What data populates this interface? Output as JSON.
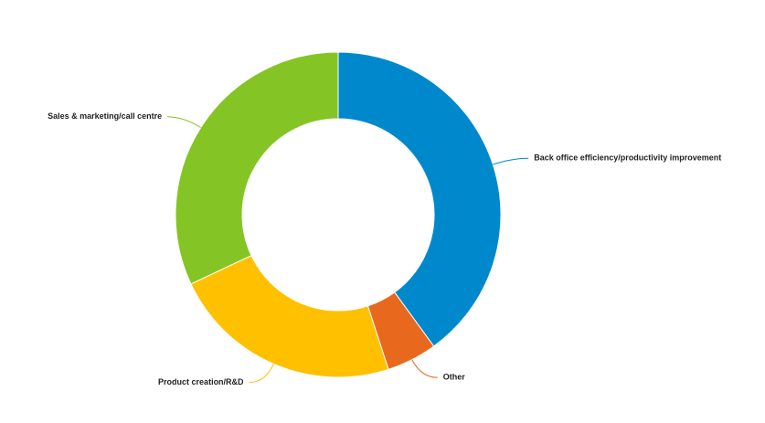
{
  "chart_data": {
    "type": "donut",
    "categories": [
      "Back office efficiency/productivity improvement",
      "Other",
      "Product creation/R&D",
      "Sales & marketing/call centre"
    ],
    "values": [
      40,
      5,
      23,
      32
    ],
    "colors": [
      "#0088cc",
      "#e8681e",
      "#ffc000",
      "#84c525"
    ]
  }
}
